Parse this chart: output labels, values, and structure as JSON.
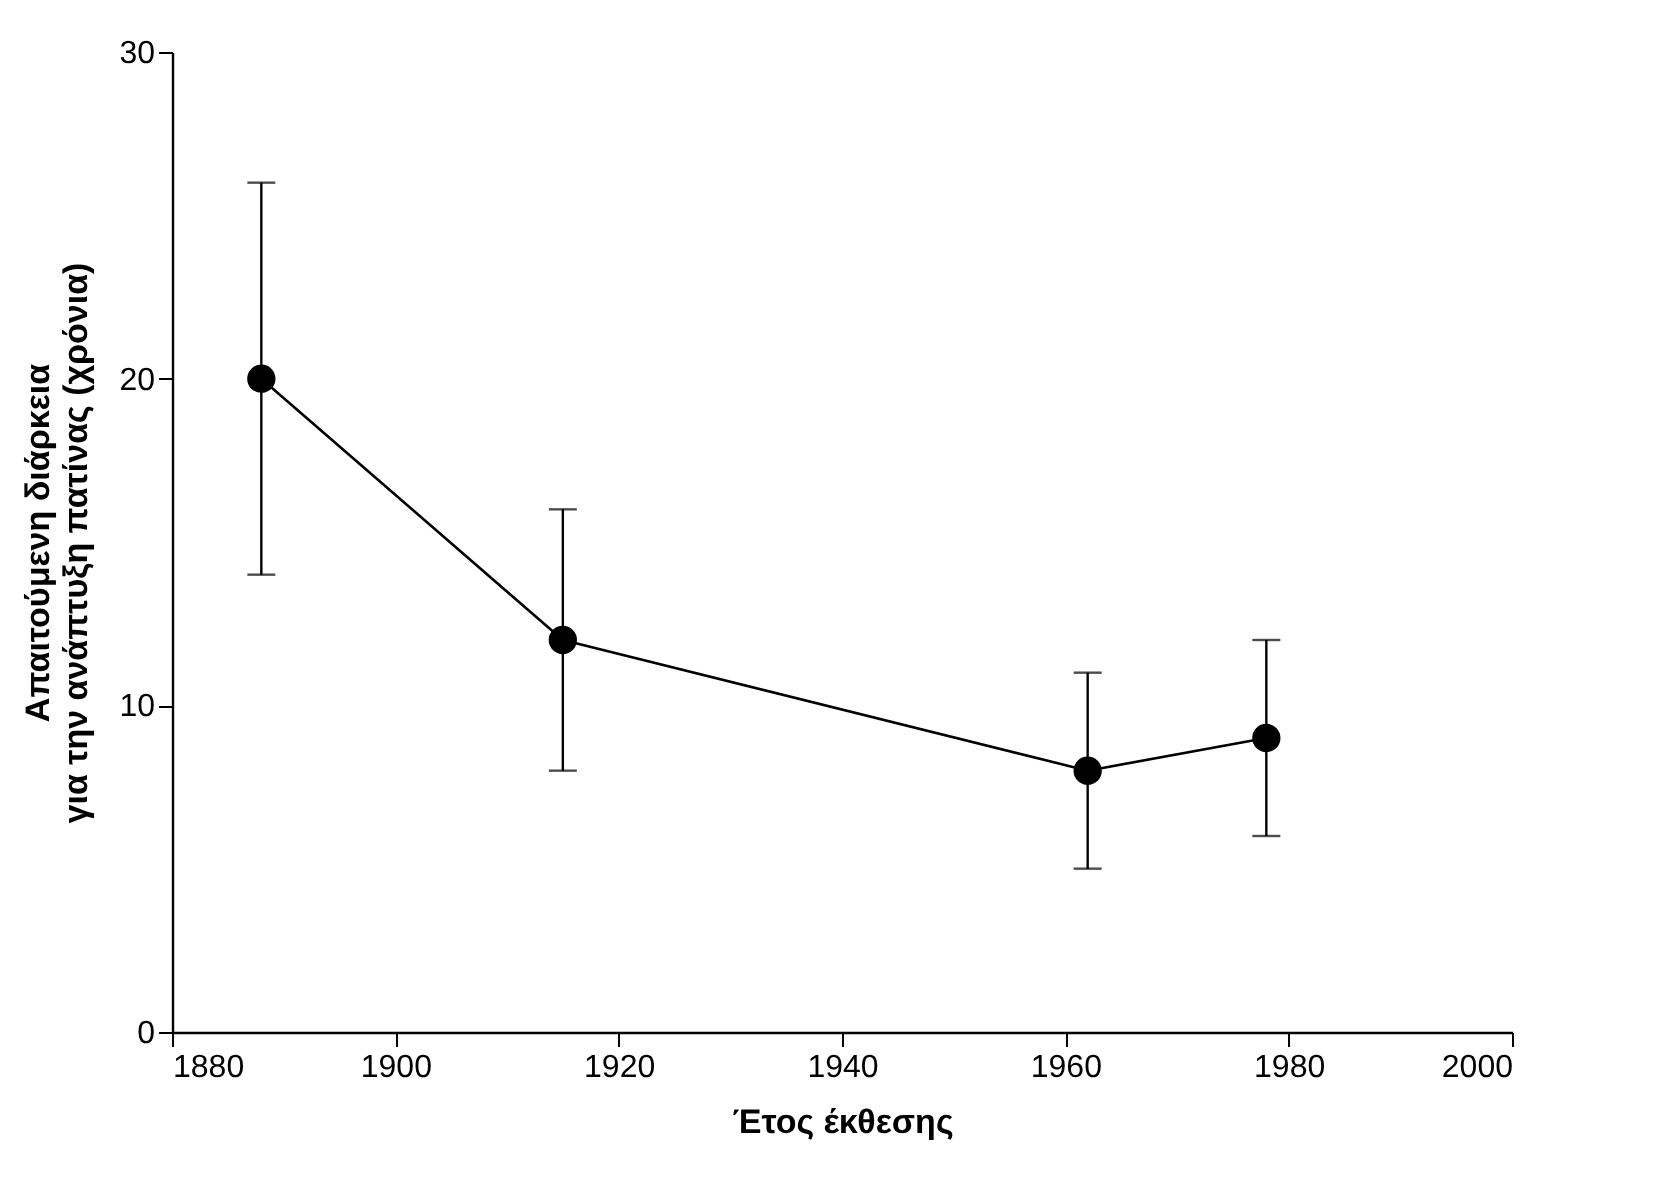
{
  "chart_data": {
    "type": "line",
    "xlabel": "Έτος έκθεσης",
    "ylabel": "Απαιτούμενη διάρκεια\nγια την ανάπτυξη πατίνας (χρόνια)",
    "x": [
      1888,
      1915,
      1962,
      1978
    ],
    "series": [
      {
        "color": "#000000",
        "values": [
          20,
          12,
          8,
          9
        ],
        "errors": [
          [
            14,
            26
          ],
          [
            8,
            16
          ],
          [
            5,
            11
          ],
          [
            6,
            12
          ]
        ]
      }
    ],
    "xlim": [
      1880,
      2000
    ],
    "xticks": [
      1880,
      1900,
      1920,
      1940,
      1960,
      1980,
      2000
    ],
    "ylim": [
      0,
      30
    ],
    "yticks": [
      0,
      10,
      20,
      30
    ],
    "grid": false,
    "marker": "circle",
    "line_style": "solid"
  }
}
